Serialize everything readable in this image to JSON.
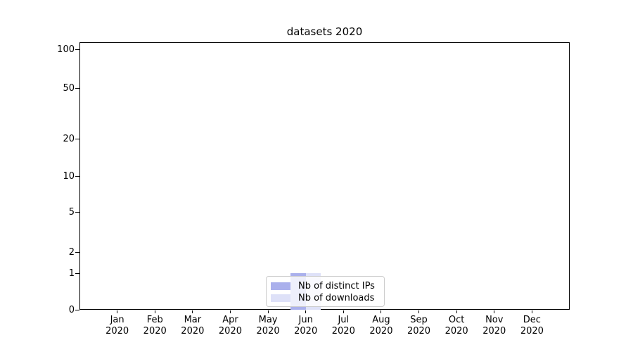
{
  "figure": {
    "title": "datasets 2020"
  },
  "chart_data": {
    "type": "bar",
    "title": "datasets 2020",
    "categories": [
      "Jan",
      "Feb",
      "Mar",
      "Apr",
      "May",
      "Jun",
      "Jul",
      "Aug",
      "Sep",
      "Oct",
      "Nov",
      "Dec"
    ],
    "category_year": "2020",
    "series": [
      {
        "name": "Nb of distinct IPs",
        "color": "#aab0ec",
        "values": [
          0,
          0,
          0,
          0,
          0,
          1,
          0,
          0,
          0,
          0,
          0,
          0
        ]
      },
      {
        "name": "Nb of downloads",
        "color": "#dee1f8",
        "values": [
          0,
          0,
          0,
          0,
          0,
          1,
          0,
          0,
          0,
          0,
          0,
          0
        ]
      }
    ],
    "yscale": "log1p",
    "yticks": [
      0,
      1,
      2,
      5,
      10,
      20,
      50,
      100
    ],
    "minor_yticks": [
      3,
      4,
      6,
      7,
      8,
      9,
      30,
      40,
      60,
      70,
      80,
      90,
      110
    ],
    "ylim": [
      0,
      113
    ],
    "xlabel": "",
    "ylabel": "",
    "grid": "both",
    "legend_position": "lower center",
    "colors": {
      "major_grid": "#c8c8c8",
      "minor_grid": "#eaeaea",
      "spine": "#000000",
      "legend_border": "#cccccc"
    }
  }
}
